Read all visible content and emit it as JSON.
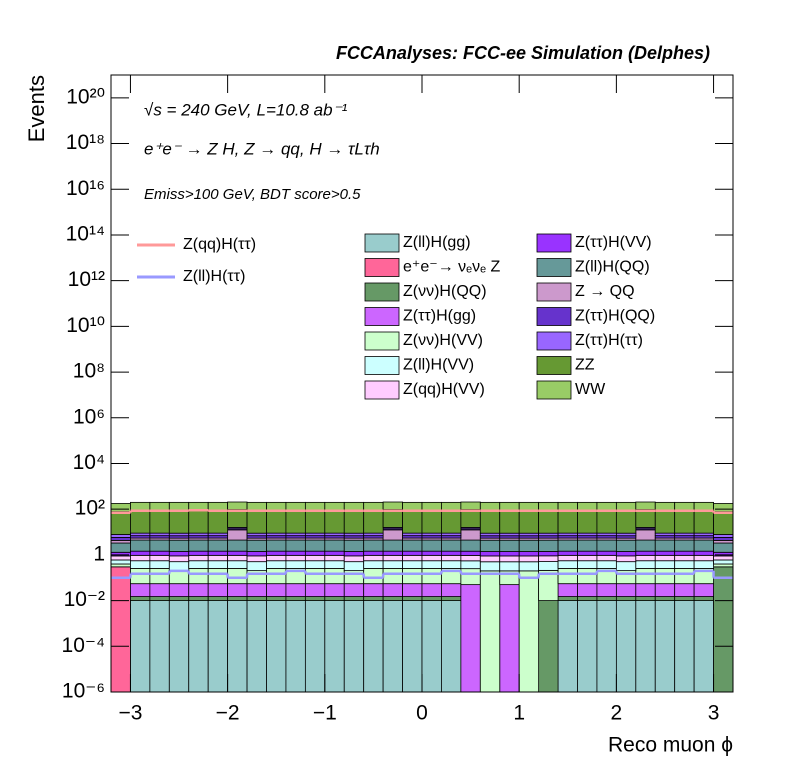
{
  "chart_data": {
    "type": "stacked_histogram",
    "title": "FCCAnalyses: FCC-ee Simulation (Delphes)",
    "annotations": [
      "√s = 240 GeV, L=10.8 ab⁻¹",
      "e⁺e⁻ → Z H, Z → qq, H → τLτh",
      "Emiss>100 GeV, BDT score>0.5"
    ],
    "x_label": "Reco muon ϕ",
    "y_label": "Events",
    "log_y": true,
    "xlim": [
      -3.2,
      3.2
    ],
    "ylim": [
      1e-06,
      1e+21
    ],
    "xticks": [
      {
        "value": -3,
        "label": "−3"
      },
      {
        "value": -2,
        "label": "−2"
      },
      {
        "value": -1,
        "label": "−1"
      },
      0,
      1,
      2,
      3
    ],
    "yticks": [
      {
        "value": 1e-06,
        "label": "10⁻⁶"
      },
      {
        "value": 0.0001,
        "label": "10⁻⁴"
      },
      {
        "value": 0.01,
        "label": "10⁻²"
      },
      1,
      {
        "value": 100,
        "label": "10²"
      },
      {
        "value": 10000,
        "label": "10⁴"
      },
      {
        "value": 1000000.0,
        "label": "10⁶"
      },
      {
        "value": 100000000.0,
        "label": "10⁸"
      },
      {
        "value": 10000000000.0,
        "label": "10¹⁰"
      },
      {
        "value": 1000000000000.0,
        "label": "10¹²"
      },
      {
        "value": 100000000000000.0,
        "label": "10¹⁴"
      },
      {
        "value": 1e+16,
        "label": "10¹⁶"
      },
      {
        "value": 1e+18,
        "label": "10¹⁸"
      },
      {
        "value": 1e+20,
        "label": "10²⁰"
      }
    ],
    "bins": [
      -3.2,
      -3.0,
      -2.8,
      -2.6,
      -2.4,
      -2.2,
      -2.0,
      -1.8,
      -1.6,
      -1.4,
      -1.2,
      -1.0,
      -0.8,
      -0.6,
      -0.4,
      -0.2,
      0,
      0.2,
      0.4,
      0.6,
      0.8,
      1.0,
      1.2,
      1.4,
      1.6,
      1.8,
      2.0,
      2.2,
      2.4,
      2.6,
      2.8,
      3.0,
      3.2
    ],
    "series": [
      {
        "name": "Z(ll)H(gg)",
        "color": "#99cccc",
        "values": [
          0,
          0.01,
          0.01,
          0.01,
          0.01,
          0.01,
          0.01,
          0.01,
          0.01,
          0.01,
          0.01,
          0.01,
          0.01,
          0.01,
          0.01,
          0.01,
          0.01,
          0.01,
          0,
          0,
          0,
          0,
          0,
          0.01,
          0.01,
          0.01,
          0.01,
          0.01,
          0.01,
          0.01,
          0.01,
          0
        ]
      },
      {
        "name": "e⁺e⁻→ νₑνₑ Z",
        "color": "#ff6699",
        "values": [
          0.3,
          0,
          0,
          0,
          0,
          0,
          0,
          0,
          0,
          0,
          0,
          0,
          0,
          0,
          0,
          0,
          0,
          0,
          0,
          0,
          0,
          0,
          0,
          0,
          0,
          0,
          0,
          0,
          0,
          0,
          0,
          0
        ]
      },
      {
        "name": "Z(νν)H(QQ)",
        "color": "#669966",
        "values": [
          0,
          0.005,
          0.005,
          0.005,
          0.005,
          0.005,
          0.005,
          0.005,
          0.005,
          0.005,
          0.005,
          0.005,
          0.005,
          0.005,
          0.005,
          0.005,
          0.005,
          0.005,
          0,
          0,
          0,
          0,
          0.01,
          0.005,
          0.005,
          0.005,
          0.005,
          0.005,
          0.005,
          0.005,
          0.005,
          0.3
        ]
      },
      {
        "name": "Z(ττ)H(gg)",
        "color": "#cc66ff",
        "values": [
          0,
          0.04,
          0.04,
          0.04,
          0.04,
          0.04,
          0.04,
          0.04,
          0.04,
          0.04,
          0.04,
          0.04,
          0.04,
          0.04,
          0.04,
          0.04,
          0.04,
          0.04,
          0.05,
          0,
          0.05,
          0,
          0,
          0.04,
          0.04,
          0.04,
          0.04,
          0.04,
          0.04,
          0.04,
          0.04,
          0
        ]
      },
      {
        "name": "Z(νν)H(VV)",
        "color": "#ccffcc",
        "values": [
          0.1,
          0.2,
          0.2,
          0.15,
          0.2,
          0.2,
          0.2,
          0.15,
          0.2,
          0.2,
          0.2,
          0.2,
          0.15,
          0.2,
          0.2,
          0.2,
          0.2,
          0.2,
          0.2,
          0.2,
          0.15,
          0.2,
          0.2,
          0.2,
          0.2,
          0.2,
          0.15,
          0.2,
          0.2,
          0.2,
          0.2,
          0.1
        ]
      },
      {
        "name": "Z(ll)H(VV)",
        "color": "#ccffff",
        "values": [
          0.2,
          0.3,
          0.3,
          0.3,
          0.3,
          0.3,
          0.3,
          0.3,
          0.3,
          0.3,
          0.3,
          0.3,
          0.3,
          0.3,
          0.3,
          0.3,
          0.3,
          0.3,
          0.3,
          0.3,
          0.3,
          0.3,
          0.3,
          0.3,
          0.3,
          0.3,
          0.3,
          0.3,
          0.3,
          0.3,
          0.3,
          0.2
        ]
      },
      {
        "name": "Z(qq)H(VV)",
        "color": "#ffccff",
        "values": [
          0.3,
          0.4,
          0.4,
          0.4,
          0.4,
          0.4,
          0.4,
          0.4,
          0.4,
          0.4,
          0.4,
          0.4,
          0.4,
          0.4,
          0.4,
          0.4,
          0.4,
          0.4,
          0.4,
          0.4,
          0.4,
          0.4,
          0.4,
          0.4,
          0.4,
          0.4,
          0.4,
          0.4,
          0.4,
          0.4,
          0.4,
          0.3
        ]
      },
      {
        "name": "Z(ττ)H(VV)",
        "color": "#9933ff",
        "values": [
          0.4,
          0.5,
          0.5,
          0.5,
          0.5,
          0.5,
          0.5,
          0.5,
          0.5,
          0.5,
          0.5,
          0.5,
          0.5,
          0.5,
          0.5,
          0.5,
          0.5,
          0.5,
          0.5,
          0.5,
          0.5,
          0.5,
          0.5,
          0.5,
          0.5,
          0.5,
          0.5,
          0.5,
          0.5,
          0.5,
          0.5,
          0.4
        ]
      },
      {
        "name": "Z(ll)H(QQ)",
        "color": "#669999",
        "values": [
          2,
          3,
          3,
          3,
          3,
          3,
          3,
          3,
          3,
          3,
          3,
          3,
          3,
          3,
          3,
          3,
          3,
          3,
          3,
          3,
          3,
          3,
          3,
          3,
          3,
          3,
          3,
          3,
          3,
          3,
          3,
          2
        ]
      },
      {
        "name": "Z → QQ",
        "color": "#cc99cc",
        "values": [
          1,
          1,
          1,
          1,
          1,
          1,
          8,
          1,
          1,
          1,
          1,
          1,
          1,
          1,
          8,
          1,
          1,
          1,
          8,
          1,
          1,
          1,
          1,
          1,
          1,
          1,
          1,
          8,
          1,
          1,
          1,
          1
        ]
      },
      {
        "name": "Z(ττ)H(QQ)",
        "color": "#6633cc",
        "values": [
          1.5,
          1.5,
          1.5,
          1.5,
          1.5,
          1.5,
          1.5,
          1.5,
          1.5,
          1.5,
          1.5,
          1.5,
          1.5,
          1.5,
          1.5,
          1.5,
          1.5,
          1.5,
          1.5,
          1.5,
          1.5,
          1.5,
          1.5,
          1.5,
          1.5,
          1.5,
          1.5,
          1.5,
          1.5,
          1.5,
          1.5,
          1.5
        ]
      },
      {
        "name": "Z(ττ)H(ττ)",
        "color": "#9966ff",
        "values": [
          2,
          2,
          2,
          2,
          2,
          2,
          2,
          2,
          2,
          2,
          2,
          2,
          2,
          2,
          2,
          2,
          2,
          2,
          2,
          2,
          2,
          2,
          2,
          2,
          2,
          2,
          2,
          2,
          2,
          2,
          2,
          2
        ]
      },
      {
        "name": "ZZ",
        "color": "#669933",
        "values": [
          70,
          80,
          80,
          80,
          80,
          80,
          80,
          80,
          80,
          80,
          80,
          80,
          80,
          80,
          80,
          80,
          80,
          80,
          80,
          80,
          80,
          80,
          80,
          80,
          80,
          80,
          80,
          80,
          80,
          80,
          80,
          70
        ]
      },
      {
        "name": "WW",
        "color": "#99cc66",
        "values": [
          100,
          110,
          110,
          110,
          110,
          110,
          110,
          110,
          110,
          110,
          110,
          110,
          110,
          110,
          110,
          110,
          110,
          110,
          110,
          110,
          110,
          110,
          110,
          110,
          110,
          110,
          110,
          110,
          110,
          110,
          110,
          100
        ]
      }
    ],
    "lines": [
      {
        "name": "Z(qq)H(ττ)",
        "color": "#ff9999",
        "values": [
          70,
          85,
          85,
          85,
          90,
          85,
          85,
          85,
          85,
          85,
          85,
          85,
          85,
          85,
          85,
          85,
          85,
          85,
          85,
          85,
          85,
          85,
          85,
          85,
          85,
          85,
          85,
          85,
          85,
          85,
          85,
          70
        ]
      },
      {
        "name": "Z(ll)H(ττ)",
        "color": "#9999ff",
        "values": [
          0.1,
          0.15,
          0.15,
          0.2,
          0.15,
          0.15,
          0.1,
          0.15,
          0.15,
          0.2,
          0.15,
          0.15,
          0.15,
          0.1,
          0.15,
          0.15,
          0.15,
          0.2,
          0.15,
          0.15,
          0.15,
          0.1,
          0.15,
          0.15,
          0.15,
          0.2,
          0.15,
          0.15,
          0.15,
          0.15,
          0.2,
          0.1
        ]
      }
    ]
  }
}
